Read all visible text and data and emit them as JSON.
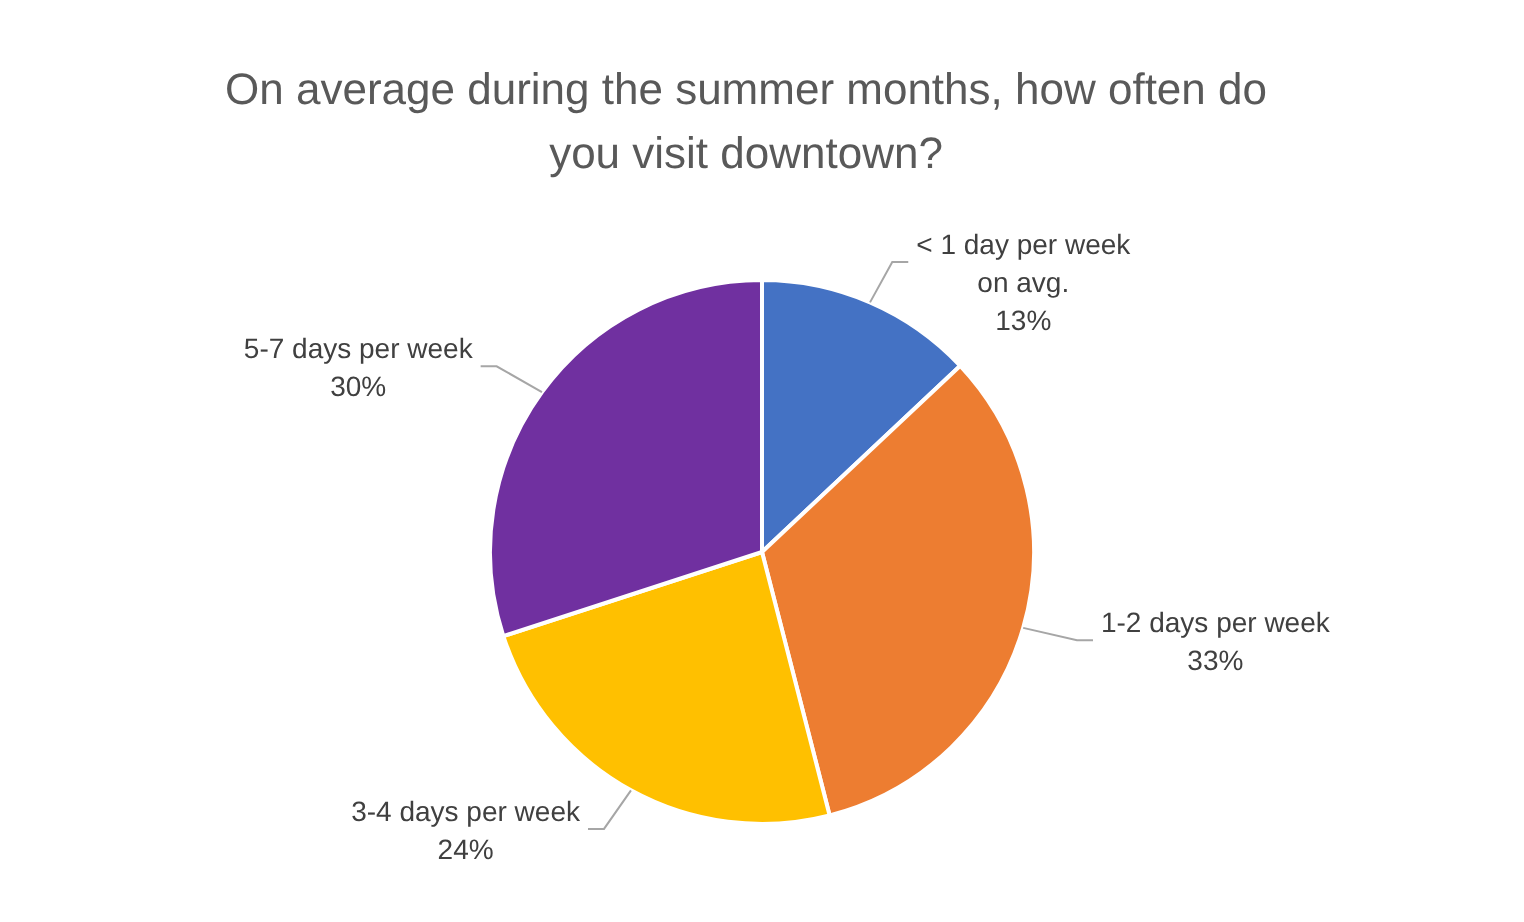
{
  "chart_data": {
    "type": "pie",
    "title": "On average during the summer months, how often do you visit downtown?",
    "categories": [
      "< 1 day per week on avg.",
      "1-2 days per week",
      "3-4 days per week",
      "5-7 days per week"
    ],
    "values": [
      13,
      33,
      24,
      30
    ],
    "value_labels": [
      "13%",
      "33%",
      "24%",
      "30%"
    ],
    "colors": [
      "#4472c4",
      "#ed7d31",
      "#ffc000",
      "#7030a0"
    ],
    "legend": false
  }
}
